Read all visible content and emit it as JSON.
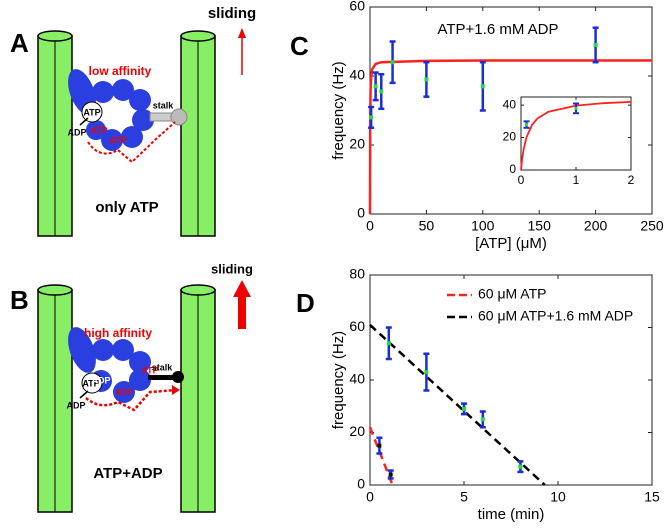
{
  "diagram_a": {
    "label": "A",
    "sliding": "sliding",
    "affinity": "low affinity",
    "atp": "ATP",
    "adp": "ADP",
    "stalk": "stalk",
    "motor_labels": [
      "ATP",
      "ATP"
    ],
    "caption": "only ATP"
  },
  "diagram_b": {
    "label": "B",
    "sliding": "sliding",
    "affinity": "high affinity",
    "atp": "ATP",
    "adp": "ADP",
    "stalk": "stalk",
    "motor_labels": [
      "ADP",
      "ATP",
      "ATP"
    ],
    "caption": "ATP+ADP"
  },
  "chart_data": [
    {
      "type": "line",
      "label": "C",
      "annotation": "ATP+1.6 mM ADP",
      "xlabel": "[ATP] (μM)",
      "ylabel": "frequency (Hz)",
      "xlim": [
        0,
        250
      ],
      "ylim": [
        0,
        60
      ],
      "xticks": [
        0,
        50,
        100,
        150,
        200,
        250
      ],
      "yticks": [
        0,
        20,
        40,
        60
      ],
      "fit": {
        "color": "#ff2020",
        "x": [
          0,
          0.2,
          0.5,
          1,
          2,
          5,
          10,
          50,
          100,
          250
        ],
        "values": [
          0,
          27.8,
          35.9,
          39.7,
          42.0,
          43.5,
          44.0,
          44.4,
          44.5,
          44.5
        ]
      },
      "points": {
        "color": "#1a2ed6",
        "marker_color": "#22dd44",
        "x": [
          1,
          5,
          10,
          20,
          50,
          100,
          200
        ],
        "values": [
          28,
          37,
          35.5,
          44,
          39,
          37,
          49
        ],
        "errors": [
          3,
          4,
          5,
          6,
          5,
          7,
          5
        ]
      },
      "inset": {
        "xlim": [
          0,
          2
        ],
        "ylim": [
          0,
          45
        ],
        "xticks": [
          0,
          1,
          2
        ],
        "yticks": [
          0,
          20,
          40
        ],
        "fit": {
          "x": [
            0,
            0.02,
            0.05,
            0.1,
            0.2,
            0.3,
            0.5,
            1,
            1.5,
            2
          ],
          "values": [
            0,
            6.8,
            13.1,
            20.2,
            27.8,
            31.8,
            35.9,
            39.7,
            41.2,
            42.0
          ]
        },
        "points": {
          "x": [
            0.1,
            1
          ],
          "values": [
            28,
            38
          ],
          "errors": [
            2,
            3
          ]
        }
      }
    },
    {
      "type": "line",
      "label": "D",
      "xlabel": "time (min)",
      "ylabel": "frequency (Hz)",
      "xlim": [
        0,
        15
      ],
      "ylim": [
        0,
        80
      ],
      "xticks": [
        0,
        5,
        10,
        15
      ],
      "yticks": [
        0,
        20,
        40,
        60,
        80
      ],
      "series": [
        {
          "name": "60 μM ATP",
          "color": "#ff2020",
          "fit_x": [
            0,
            1.2
          ],
          "fit_values": [
            22,
            0
          ],
          "marker_color": "#111111",
          "x": [
            0.5,
            1.1
          ],
          "values": [
            15,
            4
          ],
          "errors": [
            3,
            1.5
          ]
        },
        {
          "name": "60 μM ATP+1.6 mM ADP",
          "color": "#000000",
          "fit_x": [
            0,
            9.3
          ],
          "fit_values": [
            61,
            0
          ],
          "marker_color": "#22dd44",
          "x": [
            1,
            3,
            5,
            6,
            8
          ],
          "values": [
            54,
            43,
            29,
            25,
            7
          ],
          "errors": [
            6,
            7,
            2,
            3,
            2
          ]
        }
      ]
    }
  ]
}
